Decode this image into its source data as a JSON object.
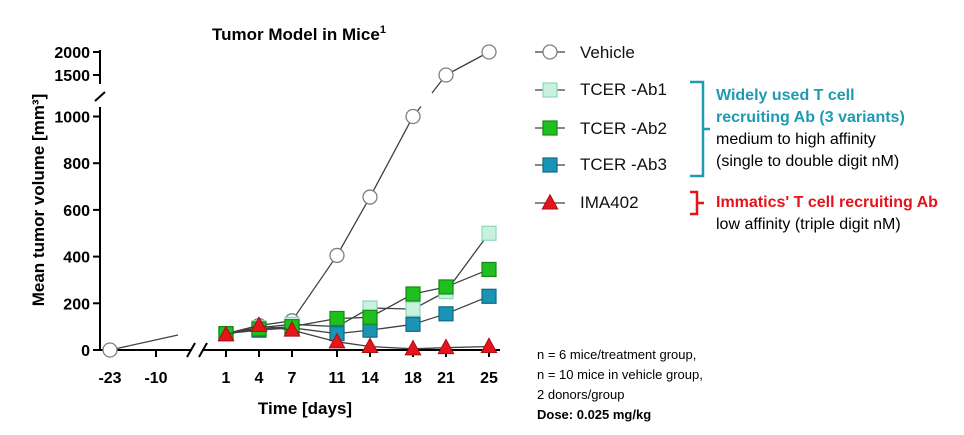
{
  "chart_data": {
    "type": "line",
    "title": "Tumor Model in Mice",
    "title_superscript": "1",
    "xlabel": "Time [days]",
    "ylabel": "Mean tumor volume [mm³]",
    "x_ticks": [
      -23,
      -10,
      1,
      4,
      7,
      11,
      14,
      18,
      21,
      25
    ],
    "y_ticks_lower": [
      0,
      200,
      400,
      600,
      800,
      1000
    ],
    "y_ticks_upper": [
      1500,
      2000
    ],
    "ylim": [
      0,
      2000
    ],
    "axis_breaks": [
      "x between -10 and 1",
      "y between 1000 and 1500"
    ],
    "series": [
      {
        "name": "Vehicle",
        "marker": "circle",
        "fill": "#ffffff",
        "stroke": "#7f7f7f",
        "line_color": "#404040",
        "points": [
          [
            -23,
            0
          ],
          [
            1,
            70
          ],
          [
            4,
            105
          ],
          [
            7,
            125
          ],
          [
            11,
            405
          ],
          [
            14,
            655
          ],
          [
            18,
            1000
          ],
          [
            21,
            1500
          ],
          [
            25,
            2000
          ]
        ]
      },
      {
        "name": "TCER  -Ab1",
        "marker": "square",
        "fill": "#c7f2df",
        "stroke": "#8fd8b8",
        "line_color": "#404040",
        "points": [
          [
            1,
            70
          ],
          [
            4,
            95
          ],
          [
            7,
            110
          ],
          [
            11,
            100
          ],
          [
            14,
            180
          ],
          [
            18,
            175
          ],
          [
            21,
            250
          ],
          [
            25,
            500
          ]
        ]
      },
      {
        "name": "TCER  -Ab2",
        "marker": "square",
        "fill": "#1fbf1f",
        "stroke": "#148a14",
        "line_color": "#404040",
        "points": [
          [
            1,
            70
          ],
          [
            4,
            90
          ],
          [
            7,
            100
          ],
          [
            11,
            135
          ],
          [
            14,
            140
          ],
          [
            18,
            240
          ],
          [
            21,
            270
          ],
          [
            25,
            345
          ]
        ]
      },
      {
        "name": "TCER  -Ab3",
        "marker": "square",
        "fill": "#1b93b5",
        "stroke": "#106a85",
        "line_color": "#404040",
        "points": [
          [
            1,
            70
          ],
          [
            4,
            85
          ],
          [
            7,
            95
          ],
          [
            11,
            70
          ],
          [
            14,
            85
          ],
          [
            18,
            110
          ],
          [
            21,
            155
          ],
          [
            25,
            230
          ]
        ]
      },
      {
        "name": "IMA402",
        "marker": "triangle",
        "fill": "#e8141b",
        "stroke": "#a80e12",
        "line_color": "#404040",
        "points": [
          [
            1,
            65
          ],
          [
            4,
            105
          ],
          [
            7,
            85
          ],
          [
            11,
            35
          ],
          [
            14,
            15
          ],
          [
            18,
            5
          ],
          [
            21,
            10
          ],
          [
            25,
            15
          ]
        ]
      }
    ]
  },
  "annotations": {
    "group1_title_line1": "Widely used T cell",
    "group1_title_line2": "recruiting Ab (3 variants)",
    "group1_desc_line1": "medium to high affinity",
    "group1_desc_line2": "(single to double digit nM)",
    "group1_color": "#1e9bb3",
    "group2_title": "Immatics' T cell recruiting Ab",
    "group2_desc": "low affinity (triple digit nM)",
    "group2_color": "#e3141b"
  },
  "footnote": {
    "line1": "n = 6 mice/treatment group,",
    "line2": "n = 10 mice in vehicle group,",
    "line3": "2 donors/group",
    "line4": "Dose: 0.025 mg/kg"
  }
}
